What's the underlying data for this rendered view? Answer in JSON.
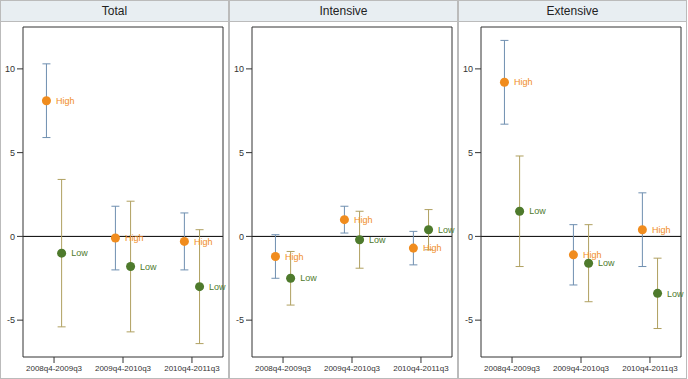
{
  "chart_data": [
    {
      "type": "scatter",
      "title": "Total",
      "categories": [
        "2008q4-2009q3",
        "2009q4-2010q3",
        "2010q4-2011q3"
      ],
      "ylim": [
        -7.2,
        12.5
      ],
      "yticks": [
        -5,
        0,
        5,
        10
      ],
      "hline": 0,
      "series": [
        {
          "name": "High",
          "color": "#f08c1e",
          "marker": "circle",
          "values": [
            8.1,
            -0.1,
            -0.3
          ],
          "ci": [
            [
              5.9,
              10.3
            ],
            [
              -2.0,
              1.8
            ],
            [
              -2.0,
              1.4
            ]
          ]
        },
        {
          "name": "Low",
          "color": "#4e7a2c",
          "marker": "circle",
          "values": [
            -1.0,
            -1.8,
            -3.0
          ],
          "ci": [
            [
              -5.4,
              3.4
            ],
            [
              -5.7,
              2.1
            ],
            [
              -6.4,
              0.4
            ]
          ]
        }
      ]
    },
    {
      "type": "scatter",
      "title": "Intensive",
      "categories": [
        "2008q4-2009q3",
        "2009q4-2010q3",
        "2010q4-2011q3"
      ],
      "ylim": [
        -7.2,
        12.5
      ],
      "yticks": [
        -5,
        0,
        5,
        10
      ],
      "hline": 0,
      "series": [
        {
          "name": "High",
          "color": "#f08c1e",
          "marker": "circle",
          "values": [
            -1.2,
            1.0,
            -0.7
          ],
          "ci": [
            [
              -2.5,
              0.1
            ],
            [
              0.2,
              1.8
            ],
            [
              -1.7,
              0.3
            ]
          ]
        },
        {
          "name": "Low",
          "color": "#4e7a2c",
          "marker": "circle",
          "values": [
            -2.5,
            -0.2,
            0.4
          ],
          "ci": [
            [
              -4.1,
              -0.9
            ],
            [
              -1.9,
              1.5
            ],
            [
              -0.8,
              1.6
            ]
          ]
        }
      ]
    },
    {
      "type": "scatter",
      "title": "Extensive",
      "categories": [
        "2008q4-2009q3",
        "2009q4-2010q3",
        "2010q4-2011q3"
      ],
      "ylim": [
        -7.2,
        12.5
      ],
      "yticks": [
        -5,
        0,
        5,
        10
      ],
      "hline": 0,
      "series": [
        {
          "name": "High",
          "color": "#f08c1e",
          "marker": "circle",
          "values": [
            9.2,
            -1.1,
            0.4
          ],
          "ci": [
            [
              6.7,
              11.7
            ],
            [
              -2.9,
              0.7
            ],
            [
              -1.8,
              2.6
            ]
          ]
        },
        {
          "name": "Low",
          "color": "#4e7a2c",
          "marker": "circle",
          "values": [
            1.5,
            -1.6,
            -3.4
          ],
          "ci": [
            [
              -1.8,
              4.8
            ],
            [
              -3.9,
              0.7
            ],
            [
              -5.5,
              -1.3
            ]
          ]
        }
      ]
    }
  ]
}
